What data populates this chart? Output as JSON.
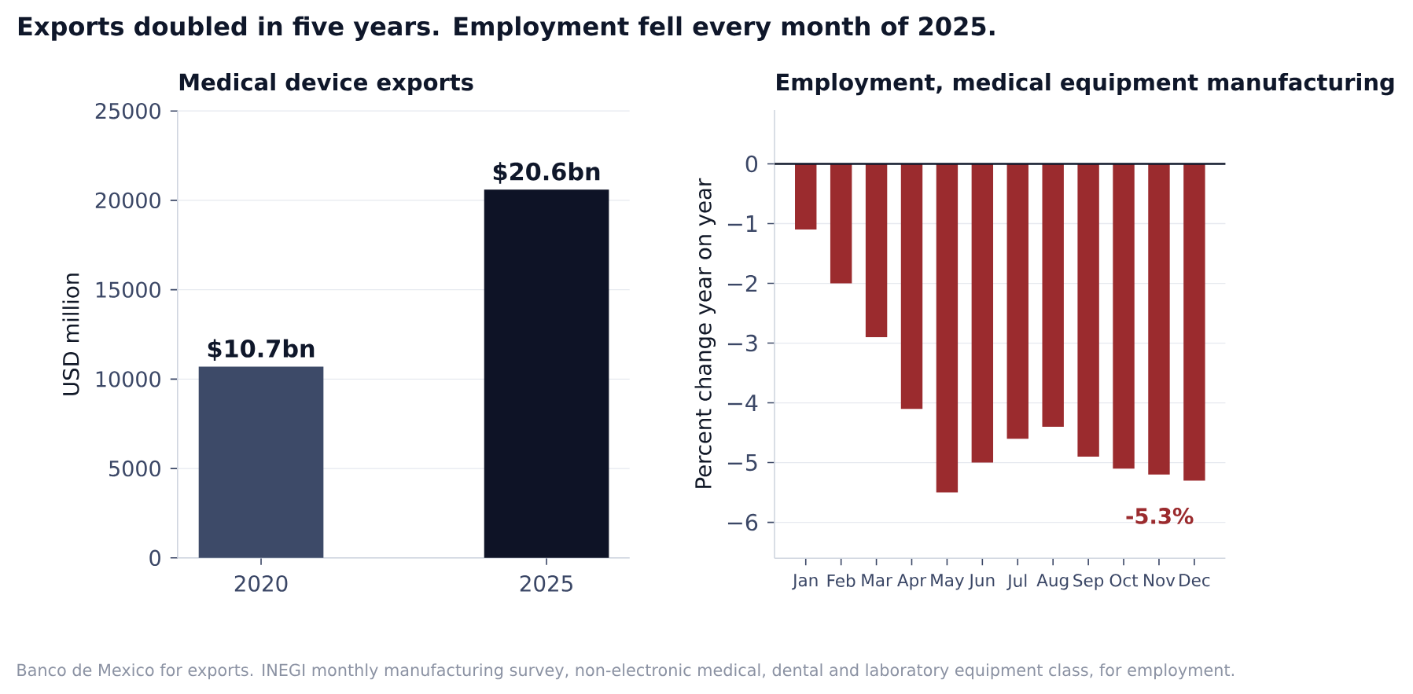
{
  "chart_data": [
    {
      "type": "bar",
      "title": "Exports doubled in five years. Employment fell every month of 2025.",
      "subtitle": "Medical device exports",
      "ylabel": "USD million",
      "categories": [
        "2020",
        "2025"
      ],
      "values": [
        10700,
        20600
      ],
      "colors": [
        "#3d4a68",
        "#0e1326"
      ],
      "ylim": [
        0,
        25000
      ],
      "yticks": [
        0,
        5000,
        10000,
        15000,
        20000,
        25000
      ],
      "grid": "y",
      "annotations": [
        {
          "text": "$10.7bn",
          "x": "2020",
          "y": 10700
        },
        {
          "text": "$20.6bn",
          "x": "2025",
          "y": 20600
        },
        "Banco de Mexico for exports. INEGI monthly manufacturing survey, non-electronic medical, dental and laboratory equipment class, for employment."
      ]
    },
    {
      "type": "bar",
      "title": "Employment, medical equipment manufacturing",
      "ylabel": "Percent change year on year",
      "categories": [
        "Jan",
        "Feb",
        "Mar",
        "Apr",
        "May",
        "Jun",
        "Jul",
        "Aug",
        "Sep",
        "Oct",
        "Nov",
        "Dec"
      ],
      "values": [
        -1.1,
        -2.0,
        -2.9,
        -4.1,
        -5.5,
        -5.0,
        -4.6,
        -4.4,
        -4.9,
        -5.1,
        -5.2,
        -5.3
      ],
      "color": "#9b2b2e",
      "ylim": [
        -6.6,
        0.9
      ],
      "yticks": [
        {
          "value": -6,
          "label": "−6"
        },
        {
          "value": -5,
          "label": "−5"
        },
        {
          "value": -4,
          "label": "−4"
        },
        {
          "value": -3,
          "label": "−3"
        },
        {
          "value": -2,
          "label": "−2"
        },
        {
          "value": -1,
          "label": "−1"
        },
        0
      ],
      "grid": "y",
      "ref_lines": [
        {
          "axis": "y",
          "value": 0,
          "color": "#0f172a"
        }
      ],
      "annotations": [
        "-5.3%"
      ]
    }
  ]
}
